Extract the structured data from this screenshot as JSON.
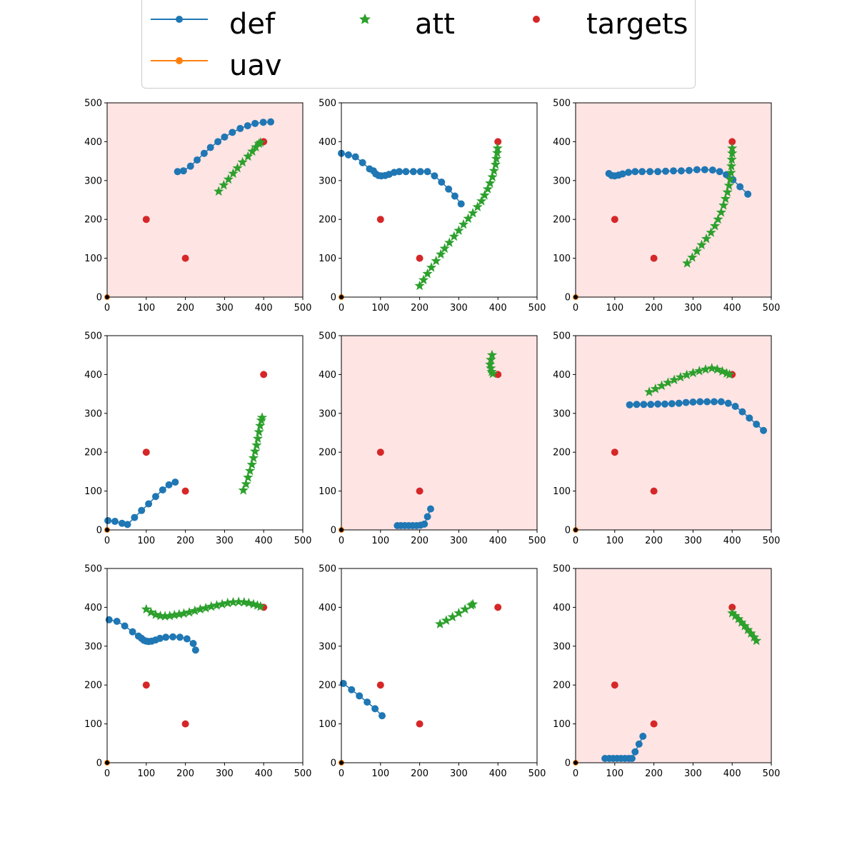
{
  "legend": {
    "entries": [
      {
        "key": "def",
        "label": "def",
        "color": "#1f77b4",
        "style": "line-marker"
      },
      {
        "key": "att",
        "label": "att",
        "color": "#2ca02c",
        "style": "star"
      },
      {
        "key": "targets",
        "label": "targets",
        "color": "#d62728",
        "style": "dot"
      },
      {
        "key": "uav",
        "label": "uav",
        "color": "#ff7f0e",
        "style": "line-marker"
      }
    ]
  },
  "chart_data": [
    {
      "type": "scatter",
      "highlight": true,
      "xlim": [
        0,
        500
      ],
      "ylim": [
        0,
        500
      ],
      "xticks": [
        "0",
        "100",
        "200",
        "300",
        "400",
        "500"
      ],
      "yticks": [
        "0",
        "100",
        "200",
        "300",
        "400",
        "500"
      ],
      "targets": [
        [
          100,
          200
        ],
        [
          200,
          100
        ],
        [
          400,
          400
        ]
      ],
      "def": [
        [
          180,
          323
        ],
        [
          195,
          325
        ],
        [
          213,
          337
        ],
        [
          230,
          353
        ],
        [
          248,
          370
        ],
        [
          264,
          385
        ],
        [
          283,
          400
        ],
        [
          300,
          412
        ],
        [
          320,
          424
        ],
        [
          340,
          434
        ],
        [
          359,
          441
        ],
        [
          378,
          447
        ],
        [
          399,
          450
        ],
        [
          418,
          451
        ]
      ],
      "att": [
        [
          285,
          272
        ],
        [
          298,
          288
        ],
        [
          310,
          303
        ],
        [
          322,
          318
        ],
        [
          333,
          332
        ],
        [
          346,
          347
        ],
        [
          360,
          362
        ],
        [
          371,
          375
        ],
        [
          380,
          386
        ],
        [
          388,
          395
        ],
        [
          392,
          398
        ]
      ],
      "uav": [
        [
          0,
          0
        ]
      ]
    },
    {
      "type": "scatter",
      "highlight": false,
      "xlim": [
        0,
        500
      ],
      "ylim": [
        0,
        500
      ],
      "xticks": [
        "0",
        "100",
        "200",
        "300",
        "400",
        "500"
      ],
      "yticks": [
        "0",
        "100",
        "200",
        "300",
        "400",
        "500"
      ],
      "targets": [
        [
          100,
          200
        ],
        [
          200,
          100
        ],
        [
          400,
          400
        ]
      ],
      "def": [
        [
          0,
          370
        ],
        [
          18,
          366
        ],
        [
          36,
          361
        ],
        [
          54,
          346
        ],
        [
          72,
          330
        ],
        [
          82,
          325
        ],
        [
          88,
          317
        ],
        [
          95,
          313
        ],
        [
          102,
          312
        ],
        [
          112,
          313
        ],
        [
          122,
          316
        ],
        [
          135,
          321
        ],
        [
          148,
          323
        ],
        [
          165,
          323
        ],
        [
          184,
          323
        ],
        [
          202,
          323
        ],
        [
          220,
          323
        ],
        [
          238,
          312
        ],
        [
          256,
          296
        ],
        [
          274,
          278
        ],
        [
          290,
          260
        ],
        [
          306,
          240
        ]
      ],
      "att": [
        [
          200,
          29
        ],
        [
          210,
          44
        ],
        [
          220,
          60
        ],
        [
          230,
          76
        ],
        [
          242,
          93
        ],
        [
          254,
          110
        ],
        [
          264,
          125
        ],
        [
          276,
          140
        ],
        [
          288,
          156
        ],
        [
          300,
          171
        ],
        [
          312,
          187
        ],
        [
          324,
          202
        ],
        [
          336,
          216
        ],
        [
          348,
          232
        ],
        [
          358,
          247
        ],
        [
          366,
          262
        ],
        [
          374,
          278
        ],
        [
          380,
          293
        ],
        [
          386,
          309
        ],
        [
          390,
          325
        ],
        [
          394,
          341
        ],
        [
          396,
          356
        ],
        [
          398,
          371
        ],
        [
          399,
          383
        ]
      ],
      "uav": [
        [
          0,
          0
        ]
      ]
    },
    {
      "type": "scatter",
      "highlight": true,
      "xlim": [
        0,
        500
      ],
      "ylim": [
        0,
        500
      ],
      "xticks": [
        "0",
        "100",
        "200",
        "300",
        "400",
        "500"
      ],
      "yticks": [
        "0",
        "100",
        "200",
        "300",
        "400",
        "500"
      ],
      "targets": [
        [
          100,
          200
        ],
        [
          200,
          100
        ],
        [
          400,
          400
        ]
      ],
      "def": [
        [
          85,
          318
        ],
        [
          92,
          313
        ],
        [
          100,
          312
        ],
        [
          110,
          314
        ],
        [
          120,
          317
        ],
        [
          135,
          321
        ],
        [
          152,
          323
        ],
        [
          170,
          323
        ],
        [
          190,
          323
        ],
        [
          210,
          323
        ],
        [
          230,
          324
        ],
        [
          250,
          325
        ],
        [
          270,
          325
        ],
        [
          290,
          326
        ],
        [
          310,
          328
        ],
        [
          330,
          328
        ],
        [
          350,
          327
        ],
        [
          368,
          323
        ],
        [
          385,
          315
        ],
        [
          402,
          302
        ],
        [
          420,
          284
        ],
        [
          440,
          265
        ]
      ],
      "att": [
        [
          285,
          87
        ],
        [
          298,
          102
        ],
        [
          310,
          118
        ],
        [
          322,
          134
        ],
        [
          334,
          150
        ],
        [
          346,
          166
        ],
        [
          356,
          183
        ],
        [
          364,
          200
        ],
        [
          372,
          218
        ],
        [
          378,
          236
        ],
        [
          383,
          253
        ],
        [
          388,
          270
        ],
        [
          392,
          287
        ],
        [
          395,
          303
        ],
        [
          397,
          320
        ],
        [
          398,
          337
        ],
        [
          399,
          354
        ],
        [
          400,
          370
        ],
        [
          400,
          383
        ]
      ],
      "uav": [
        [
          0,
          0
        ]
      ]
    },
    {
      "type": "scatter",
      "highlight": false,
      "xlim": [
        0,
        500
      ],
      "ylim": [
        0,
        500
      ],
      "xticks": [
        "0",
        "100",
        "200",
        "300",
        "400",
        "500"
      ],
      "yticks": [
        "0",
        "100",
        "200",
        "300",
        "400",
        "500"
      ],
      "targets": [
        [
          100,
          200
        ],
        [
          200,
          100
        ],
        [
          400,
          400
        ]
      ],
      "def": [
        [
          2,
          24
        ],
        [
          20,
          22
        ],
        [
          38,
          17
        ],
        [
          52,
          14
        ],
        [
          70,
          32
        ],
        [
          88,
          50
        ],
        [
          106,
          67
        ],
        [
          124,
          86
        ],
        [
          142,
          103
        ],
        [
          158,
          116
        ],
        [
          174,
          123
        ]
      ],
      "att": [
        [
          348,
          102
        ],
        [
          355,
          118
        ],
        [
          360,
          135
        ],
        [
          365,
          152
        ],
        [
          370,
          168
        ],
        [
          374,
          185
        ],
        [
          378,
          202
        ],
        [
          382,
          218
        ],
        [
          385,
          235
        ],
        [
          388,
          252
        ],
        [
          391,
          268
        ],
        [
          394,
          282
        ],
        [
          396,
          289
        ]
      ],
      "uav": [
        [
          0,
          0
        ]
      ]
    },
    {
      "type": "scatter",
      "highlight": true,
      "xlim": [
        0,
        500
      ],
      "ylim": [
        0,
        500
      ],
      "xticks": [
        "0",
        "100",
        "200",
        "300",
        "400",
        "500"
      ],
      "yticks": [
        "0",
        "100",
        "200",
        "300",
        "400",
        "500"
      ],
      "targets": [
        [
          100,
          200
        ],
        [
          200,
          100
        ],
        [
          400,
          400
        ]
      ],
      "def": [
        [
          143,
          11
        ],
        [
          152,
          11
        ],
        [
          162,
          11
        ],
        [
          172,
          11
        ],
        [
          182,
          11
        ],
        [
          192,
          11
        ],
        [
          202,
          12
        ],
        [
          212,
          15
        ],
        [
          220,
          34
        ],
        [
          228,
          54
        ]
      ],
      "att": [
        [
          385,
          450
        ],
        [
          382,
          438
        ],
        [
          380,
          426
        ],
        [
          382,
          416
        ],
        [
          384,
          407
        ],
        [
          387,
          402
        ]
      ],
      "uav": [
        [
          0,
          0
        ]
      ]
    },
    {
      "type": "scatter",
      "highlight": true,
      "xlim": [
        0,
        500
      ],
      "ylim": [
        0,
        500
      ],
      "xticks": [
        "0",
        "100",
        "200",
        "300",
        "400",
        "500"
      ],
      "yticks": [
        "0",
        "100",
        "200",
        "300",
        "400",
        "500"
      ],
      "targets": [
        [
          100,
          200
        ],
        [
          200,
          100
        ],
        [
          400,
          400
        ]
      ],
      "def": [
        [
          138,
          322
        ],
        [
          156,
          323
        ],
        [
          174,
          323
        ],
        [
          192,
          323
        ],
        [
          210,
          324
        ],
        [
          228,
          324
        ],
        [
          246,
          325
        ],
        [
          264,
          326
        ],
        [
          282,
          328
        ],
        [
          300,
          329
        ],
        [
          318,
          330
        ],
        [
          336,
          330
        ],
        [
          354,
          330
        ],
        [
          372,
          330
        ],
        [
          390,
          326
        ],
        [
          408,
          318
        ],
        [
          426,
          304
        ],
        [
          444,
          288
        ],
        [
          462,
          272
        ],
        [
          480,
          256
        ]
      ],
      "att": [
        [
          188,
          355
        ],
        [
          204,
          363
        ],
        [
          220,
          371
        ],
        [
          236,
          379
        ],
        [
          252,
          386
        ],
        [
          268,
          393
        ],
        [
          284,
          399
        ],
        [
          300,
          404
        ],
        [
          316,
          409
        ],
        [
          332,
          413
        ],
        [
          348,
          416
        ],
        [
          362,
          413
        ],
        [
          375,
          408
        ],
        [
          386,
          403
        ],
        [
          393,
          400
        ]
      ],
      "uav": [
        [
          0,
          0
        ]
      ]
    },
    {
      "type": "scatter",
      "highlight": false,
      "xlim": [
        0,
        500
      ],
      "ylim": [
        0,
        500
      ],
      "xticks": [
        "0",
        "100",
        "200",
        "300",
        "400",
        "500"
      ],
      "yticks": [
        "0",
        "100",
        "200",
        "300",
        "400",
        "500"
      ],
      "targets": [
        [
          100,
          200
        ],
        [
          200,
          100
        ],
        [
          400,
          400
        ]
      ],
      "def": [
        [
          5,
          368
        ],
        [
          25,
          364
        ],
        [
          45,
          352
        ],
        [
          65,
          337
        ],
        [
          80,
          326
        ],
        [
          88,
          320
        ],
        [
          94,
          315
        ],
        [
          100,
          313
        ],
        [
          106,
          312
        ],
        [
          114,
          313
        ],
        [
          124,
          316
        ],
        [
          135,
          320
        ],
        [
          150,
          323
        ],
        [
          168,
          324
        ],
        [
          186,
          323
        ],
        [
          204,
          319
        ],
        [
          220,
          307
        ],
        [
          226,
          290
        ]
      ],
      "att": [
        [
          100,
          395
        ],
        [
          112,
          387
        ],
        [
          124,
          381
        ],
        [
          136,
          378
        ],
        [
          148,
          377
        ],
        [
          160,
          378
        ],
        [
          172,
          380
        ],
        [
          184,
          382
        ],
        [
          196,
          384
        ],
        [
          210,
          387
        ],
        [
          224,
          391
        ],
        [
          238,
          395
        ],
        [
          252,
          398
        ],
        [
          266,
          402
        ],
        [
          280,
          405
        ],
        [
          294,
          408
        ],
        [
          308,
          411
        ],
        [
          322,
          413
        ],
        [
          336,
          414
        ],
        [
          350,
          413
        ],
        [
          362,
          411
        ],
        [
          374,
          408
        ],
        [
          384,
          405
        ],
        [
          392,
          402
        ]
      ],
      "uav": [
        [
          0,
          0
        ]
      ]
    },
    {
      "type": "scatter",
      "highlight": false,
      "xlim": [
        0,
        500
      ],
      "ylim": [
        0,
        500
      ],
      "xticks": [
        "0",
        "100",
        "200",
        "300",
        "400",
        "500"
      ],
      "yticks": [
        "0",
        "100",
        "200",
        "300",
        "400",
        "500"
      ],
      "targets": [
        [
          100,
          200
        ],
        [
          200,
          100
        ],
        [
          400,
          400
        ]
      ],
      "def": [
        [
          5,
          204
        ],
        [
          26,
          188
        ],
        [
          46,
          172
        ],
        [
          66,
          156
        ],
        [
          86,
          139
        ],
        [
          104,
          121
        ]
      ],
      "att": [
        [
          252,
          357
        ],
        [
          268,
          366
        ],
        [
          284,
          375
        ],
        [
          300,
          385
        ],
        [
          316,
          395
        ],
        [
          332,
          405
        ],
        [
          336,
          408
        ]
      ],
      "uav": [
        [
          0,
          0
        ]
      ]
    },
    {
      "type": "scatter",
      "highlight": true,
      "xlim": [
        0,
        500
      ],
      "ylim": [
        0,
        500
      ],
      "xticks": [
        "0",
        "100",
        "200",
        "300",
        "400",
        "500"
      ],
      "yticks": [
        "0",
        "100",
        "200",
        "300",
        "400",
        "500"
      ],
      "targets": [
        [
          100,
          200
        ],
        [
          200,
          100
        ],
        [
          400,
          400
        ]
      ],
      "def": [
        [
          75,
          11
        ],
        [
          86,
          11
        ],
        [
          96,
          11
        ],
        [
          106,
          11
        ],
        [
          116,
          11
        ],
        [
          126,
          11
        ],
        [
          136,
          11
        ],
        [
          144,
          11
        ],
        [
          152,
          28
        ],
        [
          162,
          48
        ],
        [
          172,
          68
        ]
      ],
      "att": [
        [
          400,
          385
        ],
        [
          408,
          378
        ],
        [
          416,
          370
        ],
        [
          424,
          361
        ],
        [
          432,
          352
        ],
        [
          440,
          342
        ],
        [
          448,
          333
        ],
        [
          456,
          323
        ],
        [
          462,
          314
        ]
      ],
      "uav": [
        [
          0,
          0
        ]
      ]
    }
  ]
}
